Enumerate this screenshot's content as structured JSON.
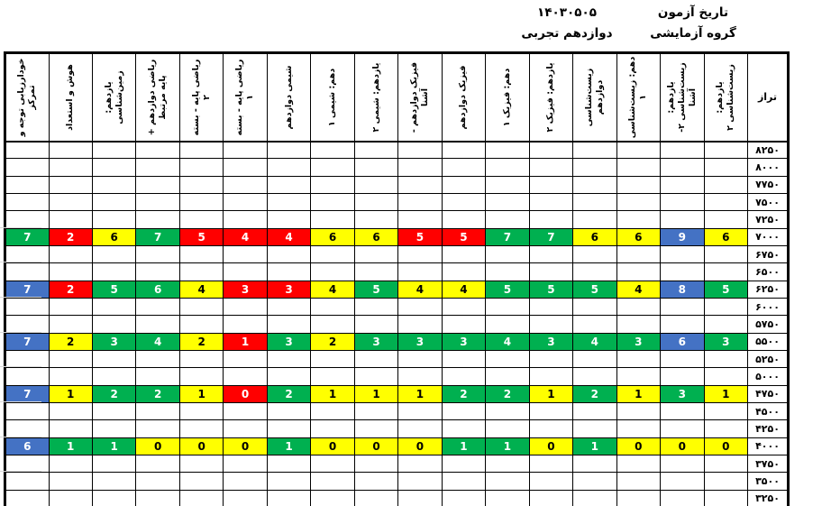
{
  "header": {
    "exam_date_label": "تاریخ آزمون",
    "exam_group_label": "گروه آزمایشی",
    "exam_date_value": "۱۴۰۳۰۵۰۵",
    "exam_group_value": "دوازدهم تجربی"
  },
  "table": {
    "score_column_header": "تراز",
    "columns": [
      "یازدهم: زیست‌شناسی ۲",
      "یازدهم: زیست‌شناسی ۲- آشنا",
      "دهم: زیست‌شناسی ۱",
      "زیست‌شناسی دوازدهم",
      "یازدهم: فیزیک ۲",
      "دهم: فیزیک ۱",
      "فیزیک دوازدهم",
      "فیزیک دوازدهم - آشنا",
      "یازدهم: شیمی ۲",
      "دهم: شیمی ۱",
      "شیمی دوازدهم",
      "ریاضی پایه - بسته ۱",
      "ریاضی پایه - بسته ۲",
      "ریاضی دوازدهم + پایه مرتبط",
      "یازدهم: زمین‌شناسی",
      "هوش و استعداد",
      "خودارزیابی توجه و تمرکز"
    ],
    "colors": {
      "g": "#00B050",
      "r": "#FF0000",
      "y": "#FFFF00",
      "b": "#4472C4",
      "text_on_dark": "#FFFFFF",
      "text_on_yellow": "#000000"
    },
    "rows": [
      {
        "score": "۸۲۵۰",
        "cells": []
      },
      {
        "score": "۸۰۰۰",
        "cells": []
      },
      {
        "score": "۷۷۵۰",
        "cells": []
      },
      {
        "score": "۷۵۰۰",
        "cells": []
      },
      {
        "score": "۷۲۵۰",
        "cells": []
      },
      {
        "score": "۷۰۰۰",
        "cells": [
          [
            "y",
            "6"
          ],
          [
            "b",
            "9"
          ],
          [
            "y",
            "6"
          ],
          [
            "y",
            "6"
          ],
          [
            "g",
            "7"
          ],
          [
            "g",
            "7"
          ],
          [
            "r",
            "5"
          ],
          [
            "r",
            "5"
          ],
          [
            "y",
            "6"
          ],
          [
            "y",
            "6"
          ],
          [
            "r",
            "4"
          ],
          [
            "r",
            "4"
          ],
          [
            "r",
            "5"
          ],
          [
            "g",
            "7"
          ],
          [
            "y",
            "6"
          ],
          [
            "r",
            "2"
          ],
          [
            "g",
            "7"
          ]
        ]
      },
      {
        "score": "۶۷۵۰",
        "cells": []
      },
      {
        "score": "۶۵۰۰",
        "cells": []
      },
      {
        "score": "۶۲۵۰",
        "cells": [
          [
            "g",
            "5"
          ],
          [
            "b",
            "8"
          ],
          [
            "y",
            "4"
          ],
          [
            "g",
            "5"
          ],
          [
            "g",
            "5"
          ],
          [
            "g",
            "5"
          ],
          [
            "y",
            "4"
          ],
          [
            "y",
            "4"
          ],
          [
            "g",
            "5"
          ],
          [
            "y",
            "4"
          ],
          [
            "r",
            "3"
          ],
          [
            "r",
            "3"
          ],
          [
            "y",
            "4"
          ],
          [
            "g",
            "6"
          ],
          [
            "g",
            "5"
          ],
          [
            "r",
            "2"
          ],
          [
            "b",
            "7"
          ]
        ]
      },
      {
        "score": "۶۰۰۰",
        "cells": []
      },
      {
        "score": "۵۷۵۰",
        "cells": []
      },
      {
        "score": "۵۵۰۰",
        "cells": [
          [
            "g",
            "3"
          ],
          [
            "b",
            "6"
          ],
          [
            "g",
            "3"
          ],
          [
            "g",
            "4"
          ],
          [
            "g",
            "3"
          ],
          [
            "g",
            "4"
          ],
          [
            "g",
            "3"
          ],
          [
            "g",
            "3"
          ],
          [
            "g",
            "3"
          ],
          [
            "y",
            "2"
          ],
          [
            "g",
            "3"
          ],
          [
            "r",
            "1"
          ],
          [
            "y",
            "2"
          ],
          [
            "g",
            "4"
          ],
          [
            "g",
            "3"
          ],
          [
            "y",
            "2"
          ],
          [
            "b",
            "7"
          ]
        ]
      },
      {
        "score": "۵۲۵۰",
        "cells": []
      },
      {
        "score": "۵۰۰۰",
        "cells": []
      },
      {
        "score": "۴۷۵۰",
        "cells": [
          [
            "y",
            "1"
          ],
          [
            "g",
            "3"
          ],
          [
            "y",
            "1"
          ],
          [
            "g",
            "2"
          ],
          [
            "y",
            "1"
          ],
          [
            "g",
            "2"
          ],
          [
            "g",
            "2"
          ],
          [
            "y",
            "1"
          ],
          [
            "y",
            "1"
          ],
          [
            "y",
            "1"
          ],
          [
            "g",
            "2"
          ],
          [
            "r",
            "0"
          ],
          [
            "y",
            "1"
          ],
          [
            "g",
            "2"
          ],
          [
            "g",
            "2"
          ],
          [
            "y",
            "1"
          ],
          [
            "b",
            "7"
          ]
        ]
      },
      {
        "score": "۴۵۰۰",
        "cells": []
      },
      {
        "score": "۴۲۵۰",
        "cells": []
      },
      {
        "score": "۴۰۰۰",
        "cells": [
          [
            "y",
            "0"
          ],
          [
            "y",
            "0"
          ],
          [
            "y",
            "0"
          ],
          [
            "g",
            "1"
          ],
          [
            "y",
            "0"
          ],
          [
            "g",
            "1"
          ],
          [
            "g",
            "1"
          ],
          [
            "y",
            "0"
          ],
          [
            "y",
            "0"
          ],
          [
            "y",
            "0"
          ],
          [
            "g",
            "1"
          ],
          [
            "y",
            "0"
          ],
          [
            "y",
            "0"
          ],
          [
            "y",
            "0"
          ],
          [
            "g",
            "1"
          ],
          [
            "g",
            "1"
          ],
          [
            "b",
            "6"
          ]
        ]
      },
      {
        "score": "۳۷۵۰",
        "cells": []
      },
      {
        "score": "۳۵۰۰",
        "cells": []
      },
      {
        "score": "۳۲۵۰",
        "cells": []
      }
    ]
  }
}
